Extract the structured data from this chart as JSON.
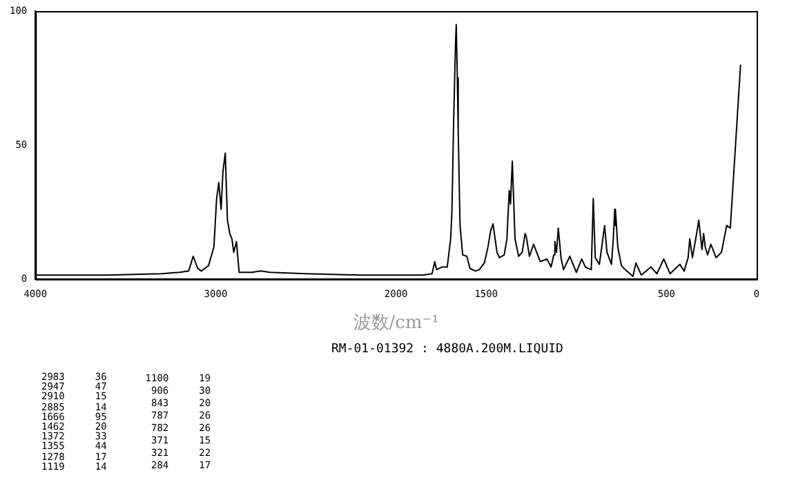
{
  "chart_data": {
    "type": "line",
    "xlabel": "波数/cm⁻¹",
    "xlim": [
      4000,
      0
    ],
    "xticks": [
      4000,
      3000,
      2000,
      1500,
      500,
      0
    ],
    "ylim": [
      0,
      100
    ],
    "yticks": [
      0,
      50,
      100
    ],
    "grid": false,
    "legend": false,
    "marker": "none",
    "line_style": "solid",
    "series": [
      {
        "color": "#000000",
        "x": [
          4000,
          3600,
          3300,
          3200,
          3150,
          3125,
          3100,
          3080,
          3040,
          3010,
          2995,
          2983,
          2970,
          2960,
          2947,
          2935,
          2922,
          2910,
          2900,
          2885,
          2870,
          2800,
          2750,
          2700,
          2500,
          2200,
          2000,
          1850,
          1800,
          1785,
          1775,
          1745,
          1716,
          1697,
          1690,
          1680,
          1670,
          1666,
          1660,
          1655,
          1645,
          1630,
          1607,
          1590,
          1560,
          1538,
          1510,
          1490,
          1475,
          1462,
          1440,
          1426,
          1400,
          1385,
          1372,
          1365,
          1355,
          1340,
          1320,
          1300,
          1284,
          1278,
          1260,
          1237,
          1200,
          1163,
          1140,
          1125,
          1119,
          1110,
          1100,
          1085,
          1071,
          1036,
          1000,
          970,
          950,
          917,
          906,
          895,
          872,
          843,
          830,
          805,
          795,
          787,
          784,
          782,
          770,
          750,
          728,
          686,
          669,
          640,
          586,
          553,
          515,
          480,
          426,
          402,
          380,
          371,
          356,
          330,
          321,
          303,
          294,
          285,
          272,
          254,
          225,
          195,
          166,
          146,
          118,
          89
        ],
        "values": [
          1.5,
          1.5,
          2,
          2.5,
          3,
          8.5,
          4,
          3,
          5,
          12,
          30,
          36,
          26,
          40,
          47,
          22,
          17,
          15,
          10,
          14,
          2.5,
          2.5,
          3,
          2.5,
          2,
          1.5,
          1.5,
          1.5,
          2,
          6.5,
          3.5,
          4.5,
          4.5,
          15,
          25,
          60,
          88,
          95,
          75,
          55,
          20,
          9,
          8.5,
          4,
          3,
          3.5,
          6,
          12,
          18,
          20.6,
          10,
          8,
          9,
          15,
          33,
          28,
          44,
          15,
          8.5,
          10,
          17,
          16,
          8.5,
          13,
          6.5,
          7.5,
          4.5,
          9,
          14,
          10,
          19,
          8,
          3.5,
          8.5,
          2.5,
          7.5,
          4.5,
          3.5,
          30,
          8,
          5.5,
          20,
          10,
          5.5,
          15,
          26,
          20,
          26,
          12,
          5,
          3.5,
          1,
          6,
          1.5,
          4.5,
          2,
          7.5,
          2,
          5.5,
          3,
          8,
          15,
          8,
          18,
          22,
          11,
          17,
          12,
          9,
          13,
          8,
          10,
          20,
          19,
          49,
          80
        ]
      }
    ],
    "annotations": [
      "RM-01-01392 : 4880A.200M.LIQUID",
      "2983 36",
      "2947 47",
      "2910 15",
      "2885 14",
      "1666 95",
      "1462 20",
      "1372 33",
      "1355 44",
      "1278 17",
      "1119 14",
      "1100 19",
      "906 30",
      "843 20",
      "787 26",
      "782 26",
      "371 15",
      "321 22",
      "284 17"
    ]
  }
}
